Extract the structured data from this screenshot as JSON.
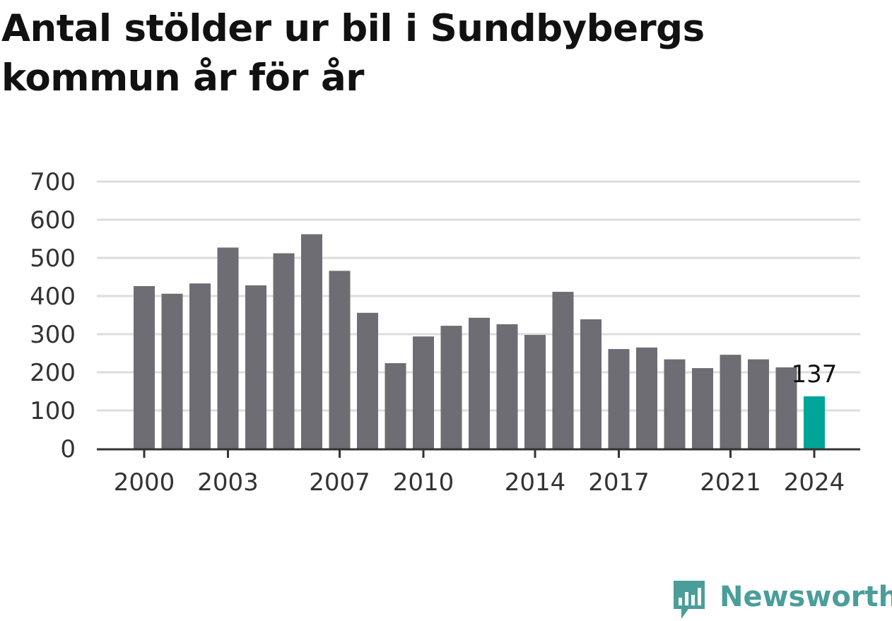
{
  "title": "Antal stölder ur bil i Sundbybergs kommun år för år",
  "brand": {
    "name": "Newsworthy",
    "color": "#4a9e9a"
  },
  "colors": {
    "bar": "#6e6d73",
    "highlight": "#00a499",
    "grid": "#dddddd",
    "axis": "#333333"
  },
  "chart_data": {
    "type": "bar",
    "categories": [
      "2000",
      "2001",
      "2002",
      "2003",
      "2004",
      "2005",
      "2006",
      "2007",
      "2008",
      "2009",
      "2010",
      "2011",
      "2012",
      "2013",
      "2014",
      "2015",
      "2016",
      "2017",
      "2018",
      "2019",
      "2020",
      "2021",
      "2022",
      "2023",
      "2024"
    ],
    "values": [
      426,
      406,
      433,
      527,
      428,
      512,
      562,
      466,
      356,
      224,
      294,
      322,
      343,
      326,
      298,
      411,
      339,
      261,
      265,
      234,
      211,
      246,
      234,
      213,
      137
    ],
    "x_tick_labels": [
      "2000",
      "2003",
      "2007",
      "2010",
      "2014",
      "2017",
      "2021",
      "2024"
    ],
    "y_ticks": [
      0,
      100,
      200,
      300,
      400,
      500,
      600,
      700
    ],
    "ylim": [
      0,
      700
    ],
    "highlight_category": "2024",
    "data_label": "137",
    "grid": true,
    "xlabel": "",
    "ylabel": ""
  }
}
